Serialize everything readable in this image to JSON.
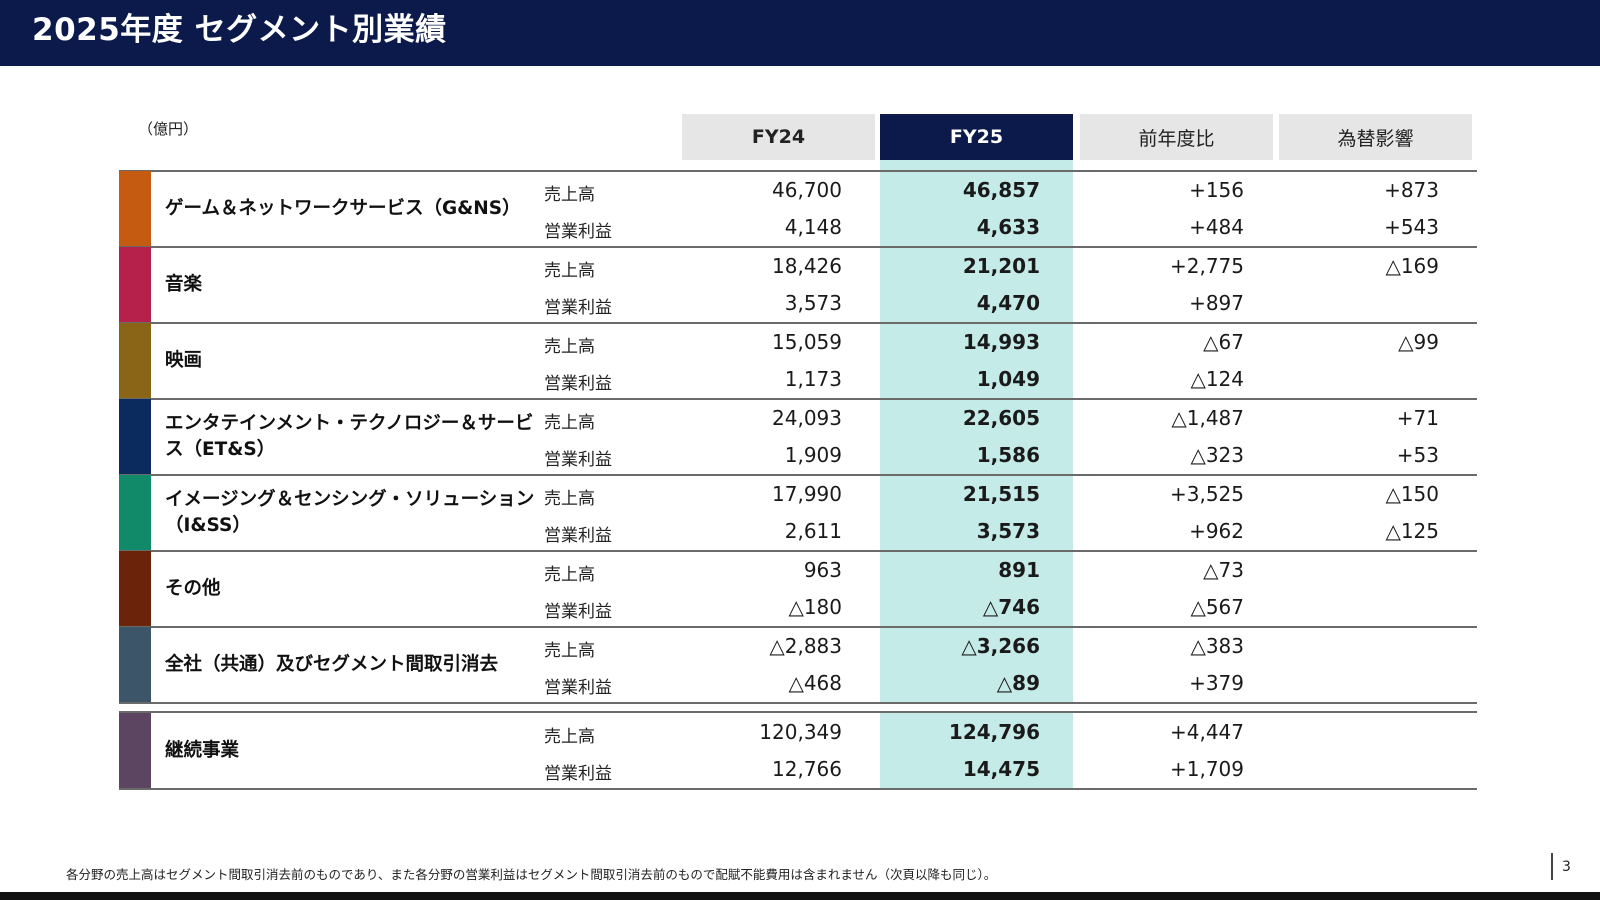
{
  "title": "2025年度 セグメント別業績",
  "unit": "（億円）",
  "columns": [
    "FY24",
    "FY25",
    "前年度比",
    "為替影響"
  ],
  "segments": [
    {
      "name": "ゲーム＆ネットワークサービス（G&NS）",
      "color": "#c55a11",
      "rows": [
        {
          "metric": "売上高",
          "fy24": "46,700",
          "fy25": "46,857",
          "yoy": "+156",
          "fx": "+873"
        },
        {
          "metric": "営業利益",
          "fy24": "4,148",
          "fy25": "4,633",
          "yoy": "+484",
          "fx": "+543"
        }
      ]
    },
    {
      "name": "音楽",
      "color": "#b5214b",
      "rows": [
        {
          "metric": "売上高",
          "fy24": "18,426",
          "fy25": "21,201",
          "yoy": "+2,775",
          "fx": "△169"
        },
        {
          "metric": "営業利益",
          "fy24": "3,573",
          "fy25": "4,470",
          "yoy": "+897",
          "fx": ""
        }
      ]
    },
    {
      "name": "映画",
      "color": "#8a6518",
      "rows": [
        {
          "metric": "売上高",
          "fy24": "15,059",
          "fy25": "14,993",
          "yoy": "△67",
          "fx": "△99"
        },
        {
          "metric": "営業利益",
          "fy24": "1,173",
          "fy25": "1,049",
          "yoy": "△124",
          "fx": ""
        }
      ]
    },
    {
      "name": "エンタテインメント・テクノロジー＆サービス（ET&S）",
      "color": "#0b2a5e",
      "rows": [
        {
          "metric": "売上高",
          "fy24": "24,093",
          "fy25": "22,605",
          "yoy": "△1,487",
          "fx": "+71"
        },
        {
          "metric": "営業利益",
          "fy24": "1,909",
          "fy25": "1,586",
          "yoy": "△323",
          "fx": "+53"
        }
      ]
    },
    {
      "name": "イメージング＆センシング・ソリューション（I&SS）",
      "color": "#118a6a",
      "rows": [
        {
          "metric": "売上高",
          "fy24": "17,990",
          "fy25": "21,515",
          "yoy": "+3,525",
          "fx": "△150"
        },
        {
          "metric": "営業利益",
          "fy24": "2,611",
          "fy25": "3,573",
          "yoy": "+962",
          "fx": "△125"
        }
      ]
    },
    {
      "name": "その他",
      "color": "#6b230a",
      "rows": [
        {
          "metric": "売上高",
          "fy24": "963",
          "fy25": "891",
          "yoy": "△73",
          "fx": ""
        },
        {
          "metric": "営業利益",
          "fy24": "△180",
          "fy25": "△746",
          "yoy": "△567",
          "fx": ""
        }
      ]
    },
    {
      "name": "全社（共通）及びセグメント間取引消去",
      "color": "#3d5568",
      "rows": [
        {
          "metric": "売上高",
          "fy24": "△2,883",
          "fy25": "△3,266",
          "yoy": "△383",
          "fx": ""
        },
        {
          "metric": "営業利益",
          "fy24": "△468",
          "fy25": "△89",
          "yoy": "+379",
          "fx": ""
        }
      ]
    },
    {
      "name": "継続事業",
      "color": "#5c4561",
      "rows": [
        {
          "metric": "売上高",
          "fy24": "120,349",
          "fy25": "124,796",
          "yoy": "+4,447",
          "fx": ""
        },
        {
          "metric": "営業利益",
          "fy24": "12,766",
          "fy25": "14,475",
          "yoy": "+1,709",
          "fx": ""
        }
      ]
    }
  ],
  "footnote": "各分野の売上高はセグメント間取引消去前のものであり、また各分野の営業利益はセグメント間取引消去前のもので配賦不能費用は含まれません（次頁以降も同じ）。",
  "page_number": "3",
  "colors": {
    "header": "#0b1a4a",
    "fy25_highlight": "#c5ebe8",
    "column_header": "#e6e6e6"
  }
}
